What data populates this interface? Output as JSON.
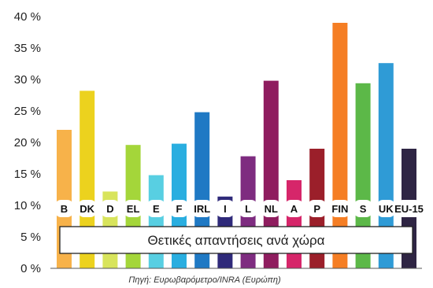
{
  "chart_data": {
    "type": "bar",
    "categories": [
      "B",
      "DK",
      "D",
      "EL",
      "E",
      "F",
      "IRL",
      "I",
      "L",
      "NL",
      "A",
      "P",
      "FIN",
      "S",
      "UK",
      "EU-15"
    ],
    "values": [
      22,
      28.2,
      12.2,
      19.6,
      14.8,
      19.8,
      24.8,
      11.4,
      17.8,
      29.8,
      14,
      19,
      39,
      29.4,
      32.6,
      19
    ],
    "colors": [
      "#f7b24a",
      "#ecd21e",
      "#d8e45c",
      "#a4d63a",
      "#58cfe2",
      "#2aaee0",
      "#1f79c4",
      "#2f2a7a",
      "#7e2c80",
      "#8f1d5f",
      "#d6266a",
      "#9b1f2a",
      "#f57e24",
      "#5cb848",
      "#2f9bd6",
      "#2f2544"
    ],
    "ylim": [
      0,
      40
    ],
    "yticks": [
      "0 %",
      "5 %",
      "10 %",
      "15 %",
      "20 %",
      "25 %",
      "30 %",
      "35 %",
      "40 %"
    ],
    "banner": "Θετικές απαντήσεις ανά χώρα",
    "source": "Πηγή: Ευρωβαρόμετρο/INRA (Ευρώπη)",
    "grid": false,
    "legend": "none"
  }
}
